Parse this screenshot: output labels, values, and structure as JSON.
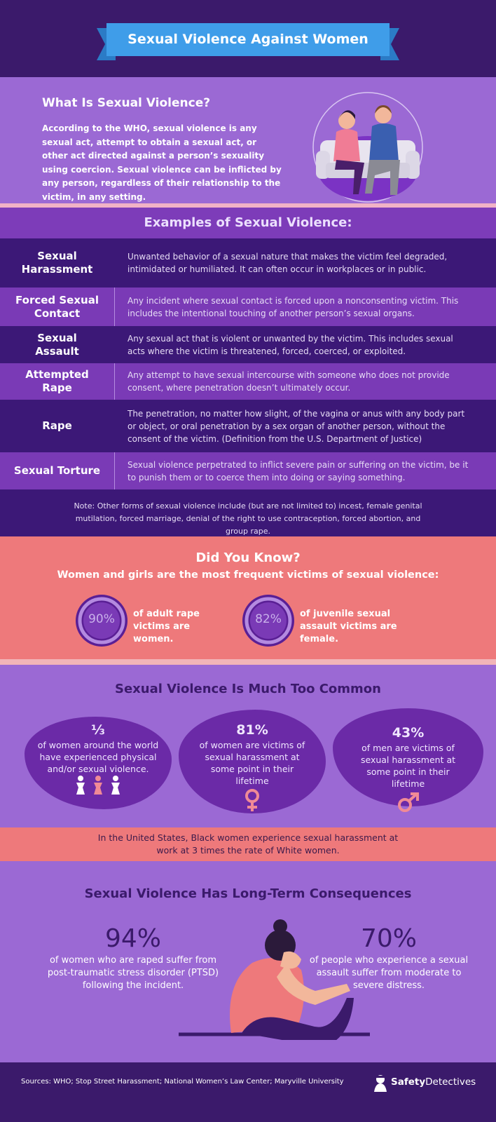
{
  "header": {
    "title": "Sexual Violence Against Women"
  },
  "definition": {
    "title": "What Is Sexual Violence?",
    "text": "According to the WHO, sexual violence is any sexual act, attempt to obtain a sexual act, or other act directed against a person’s sexuality using coercion. Sexual violence can be inflicted by any person, regardless of their relationship to the victim, in any setting."
  },
  "examples": {
    "title": "Examples of Sexual Violence:",
    "rows": [
      [
        "Sexual Harassment",
        "Unwanted behavior of a sexual nature that makes the victim feel degraded, intimidated or humiliated. It can often occur in workplaces or in public."
      ],
      [
        "Forced Sexual Contact",
        "Any incident where sexual contact is forced upon a nonconsenting victim. This includes the intentional touching of another person’s sexual organs."
      ],
      [
        "Sexual Assault",
        "Any sexual act that is violent or unwanted by the victim. This includes sexual acts where the victim is threatened, forced, coerced, or exploited."
      ],
      [
        "Attempted Rape",
        "Any attempt to have sexual intercourse with someone who does not provide consent, where penetration doesn’t ultimately occur."
      ],
      [
        "Rape",
        "The penetration, no matter how slight, of the vagina or anus with any body part or object, or oral penetration by a sex organ of another person, without the consent of the victim. (Definition from the U.S. Department of Justice)"
      ],
      [
        "Sexual Torture",
        "Sexual violence perpetrated to inflict severe pain or suffering on the victim, be it to punish them or to coerce them into doing or saying something."
      ]
    ],
    "note": "Note: Other forms of sexual violence include (but are not limited to) incest, female genital mutilation, forced marriage, denial of the right to use contraception, forced abortion,  and group rape."
  },
  "did_you_know": {
    "title": "Did You Know?",
    "subtitle": "Women and girls are the most frequent victims of sexual violence:",
    "stats": [
      {
        "value": "90%",
        "label": "of adult rape victims are women."
      },
      {
        "value": "82%",
        "label": "of juvenile sexual assault victims are female."
      }
    ]
  },
  "common": {
    "title": "Sexual Violence Is Much Too Common",
    "stats": [
      {
        "value": "⅓",
        "label": "of women around the world have experienced physical and/or sexual violence."
      },
      {
        "value": "81%",
        "label": "of women are victims of sexual harassment at some point in their lifetime"
      },
      {
        "value": "43%",
        "label": "of men are victims of sexual harassment at some point in their lifetime"
      }
    ],
    "banner": "In the United States, Black women experience sexual harassment at work at 3 times the rate of White women."
  },
  "consequences": {
    "title": "Sexual Violence Has Long-Term Consequences",
    "stats": [
      {
        "value": "94%",
        "label": "of women who are raped suffer from post-traumatic stress disorder (PTSD) following the incident."
      },
      {
        "value": "70%",
        "label": "of people who experience a sexual assault suffer from moderate to severe distress."
      }
    ]
  },
  "footer": {
    "sources": "Sources: WHO; Stop Street Harassment; National Women’s Law Center; Maryville University",
    "brand": [
      "Safety",
      "Detectives"
    ]
  }
}
